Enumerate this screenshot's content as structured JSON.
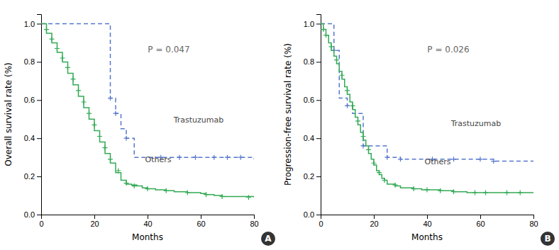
{
  "chart_data": [
    {
      "type": "step",
      "title": "A",
      "x_label": "Months",
      "y_label": "Overall survival rate (%)",
      "annotations": [
        "P = 0.047"
      ],
      "xlim": [
        0,
        80
      ],
      "ylim": [
        0,
        1.05
      ],
      "xticks": [
        0,
        20,
        40,
        60,
        80
      ],
      "yticks": [
        {
          "value": 0,
          "label": "0.0"
        },
        0.2,
        0.4,
        0.6,
        0.8,
        {
          "value": 1.0,
          "label": "1.0"
        }
      ],
      "series": [
        {
          "name": "Trastuzumab",
          "color": "#5577cc",
          "line_style": "dashed",
          "marker": "+",
          "x": [
            0,
            26,
            28,
            30,
            32,
            35,
            38,
            80
          ],
          "values": [
            1.0,
            0.61,
            0.53,
            0.45,
            0.4,
            0.3,
            0.3,
            0.29
          ],
          "censor_x": [
            26,
            28,
            32,
            45,
            52,
            58,
            65,
            70,
            75
          ],
          "censor_values": [
            0.61,
            0.53,
            0.4,
            0.3,
            0.3,
            0.3,
            0.3,
            0.3,
            0.3
          ]
        },
        {
          "name": "Others",
          "color": "#33aa55",
          "line_style": "solid",
          "marker": "+",
          "x": [
            0,
            2,
            4,
            6,
            8,
            10,
            12,
            14,
            16,
            18,
            20,
            22,
            24,
            26,
            28,
            30,
            32,
            34,
            36,
            38,
            40,
            43,
            47,
            50,
            55,
            60,
            62,
            65,
            68,
            72,
            78,
            80
          ],
          "values": [
            1.0,
            0.95,
            0.9,
            0.85,
            0.8,
            0.74,
            0.68,
            0.62,
            0.56,
            0.5,
            0.44,
            0.38,
            0.32,
            0.27,
            0.22,
            0.18,
            0.16,
            0.155,
            0.15,
            0.14,
            0.135,
            0.13,
            0.125,
            0.12,
            0.115,
            0.11,
            0.105,
            0.1,
            0.095,
            0.095,
            0.095,
            0.09
          ],
          "censor_x": [
            2,
            4,
            6,
            8,
            10,
            12,
            14,
            16,
            18,
            20,
            22,
            24,
            26,
            29,
            32,
            35,
            40,
            47,
            55,
            62,
            68,
            78
          ],
          "censor_values": [
            0.97,
            0.92,
            0.87,
            0.82,
            0.77,
            0.71,
            0.65,
            0.59,
            0.53,
            0.47,
            0.41,
            0.35,
            0.29,
            0.23,
            0.165,
            0.15,
            0.135,
            0.125,
            0.115,
            0.105,
            0.095,
            0.09
          ]
        }
      ]
    },
    {
      "type": "step",
      "title": "B",
      "x_label": "Months",
      "y_label": "Progression-free survival rate (%)",
      "annotations": [
        "P = 0.026"
      ],
      "xlim": [
        0,
        80
      ],
      "ylim": [
        0,
        1.05
      ],
      "xticks": [
        0,
        20,
        40,
        60,
        80
      ],
      "yticks": [
        {
          "value": 0,
          "label": "0.0"
        },
        0.2,
        0.4,
        0.6,
        0.8,
        {
          "value": 1.0,
          "label": "1.0"
        }
      ],
      "series": [
        {
          "name": "Trastuzumab",
          "color": "#5577cc",
          "line_style": "dashed",
          "marker": "+",
          "x": [
            0,
            5,
            7,
            10,
            12,
            16,
            25,
            30,
            38,
            65,
            80
          ],
          "values": [
            1.0,
            0.86,
            0.61,
            0.57,
            0.53,
            0.36,
            0.3,
            0.29,
            0.29,
            0.28,
            0.28
          ],
          "censor_x": [
            5,
            10,
            16,
            25,
            30,
            42,
            50,
            60,
            65
          ],
          "censor_values": [
            0.86,
            0.57,
            0.36,
            0.3,
            0.29,
            0.29,
            0.29,
            0.29,
            0.28
          ]
        },
        {
          "name": "Others",
          "color": "#33aa55",
          "line_style": "solid",
          "marker": "+",
          "x": [
            0,
            1,
            2,
            3,
            4,
            5,
            6,
            7,
            8,
            9,
            10,
            11,
            12,
            13,
            14,
            15,
            16,
            17,
            18,
            19,
            20,
            21,
            22,
            23,
            24,
            25,
            28,
            30,
            32,
            35,
            38,
            40,
            45,
            50,
            55,
            60,
            65,
            70,
            75,
            80
          ],
          "values": [
            1.0,
            0.97,
            0.94,
            0.9,
            0.86,
            0.83,
            0.79,
            0.75,
            0.71,
            0.67,
            0.63,
            0.59,
            0.55,
            0.51,
            0.47,
            0.43,
            0.39,
            0.36,
            0.32,
            0.29,
            0.26,
            0.23,
            0.21,
            0.19,
            0.18,
            0.16,
            0.15,
            0.14,
            0.14,
            0.135,
            0.13,
            0.13,
            0.125,
            0.12,
            0.115,
            0.115,
            0.115,
            0.115,
            0.115,
            0.115
          ],
          "censor_x": [
            1,
            2,
            4,
            6,
            8,
            10,
            12,
            14,
            16,
            18,
            20,
            22,
            24,
            28,
            35,
            40,
            45,
            50,
            58,
            62,
            70,
            75
          ],
          "censor_values": [
            0.97,
            0.94,
            0.88,
            0.81,
            0.73,
            0.65,
            0.57,
            0.49,
            0.41,
            0.34,
            0.27,
            0.22,
            0.18,
            0.155,
            0.135,
            0.13,
            0.125,
            0.12,
            0.115,
            0.115,
            0.115,
            0.115
          ]
        }
      ]
    }
  ]
}
